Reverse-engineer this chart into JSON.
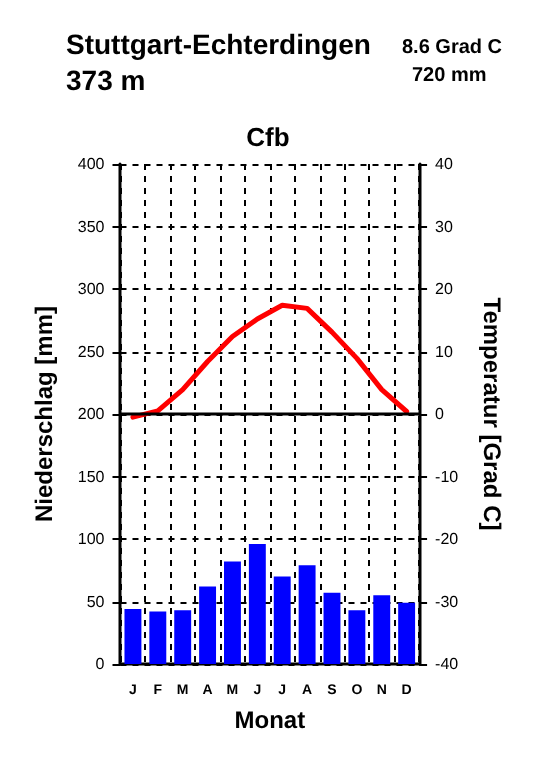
{
  "chart_data": {
    "type": "bar",
    "title": "Stuttgart-Echterdingen",
    "subtitle": "Cfb",
    "xlabel": "Monat",
    "ylabel": "Niederschlag [mm]",
    "y2label": "Temperatur [Grad C]",
    "annotations": [
      "373 m",
      "8.6 Grad C",
      "720 mm"
    ],
    "categories": [
      "J",
      "F",
      "M",
      "A",
      "M",
      "J",
      "J",
      "A",
      "S",
      "O",
      "N",
      "D"
    ],
    "series": [
      {
        "color": "#0000ff",
        "values": [
          44,
          42,
          43,
          62,
          82,
          96,
          70,
          79,
          57,
          43,
          55,
          49
        ]
      },
      {
        "type": "line",
        "axis": "y2",
        "color": "#ff0000",
        "values": [
          -0.5,
          0.5,
          3.9,
          8.4,
          12.4,
          15.2,
          17.4,
          16.9,
          13.1,
          8.9,
          3.9,
          0.4
        ]
      }
    ],
    "ylim": [
      0,
      400
    ],
    "yticks": [
      0,
      50,
      100,
      150,
      200,
      250,
      300,
      350,
      400
    ],
    "y2lim": [
      -40,
      40
    ],
    "y2ticks": [
      -40,
      -30,
      -20,
      -10,
      0,
      10,
      20,
      30,
      40
    ],
    "ref_lines": [
      {
        "axis": "y2",
        "value": 0,
        "color": "#000000"
      }
    ],
    "grid": true,
    "marker": "none",
    "line_style": "solid"
  }
}
